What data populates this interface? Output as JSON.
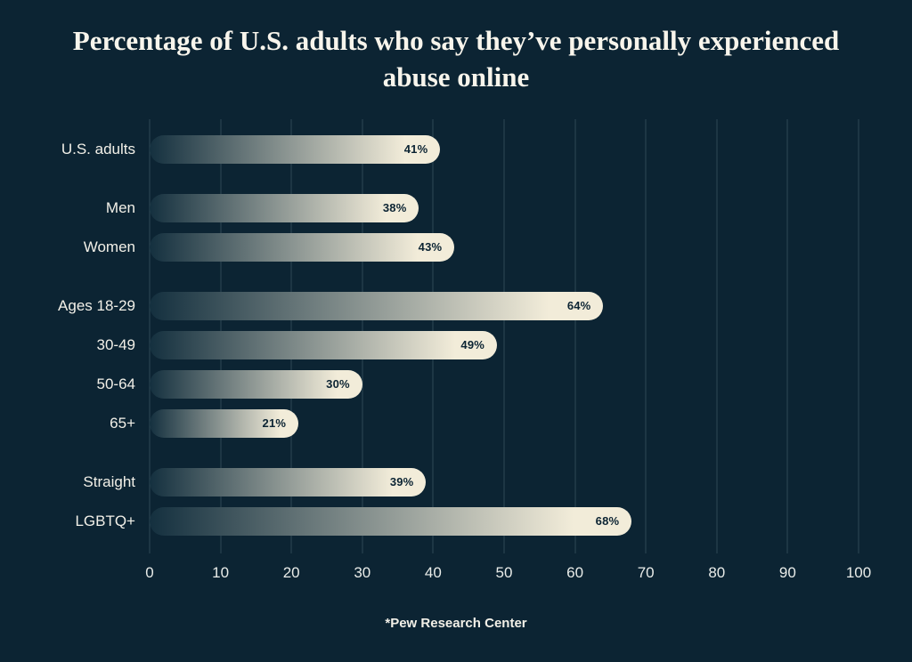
{
  "title": "Percentage of U.S. adults who say they’ve personally experienced abuse online",
  "source_note": "*Pew Research Center",
  "colors": {
    "background": "#0c2433",
    "bar_gradient_start": "#14303f",
    "bar_gradient_end": "#f2ecd9",
    "title_text": "#f8f5ec",
    "label_text": "#f2f0e8",
    "value_text": "#0c2433",
    "gridline": "rgba(170,195,205,0.22)",
    "tick_text": "#e9ece9"
  },
  "chart_data": {
    "type": "bar",
    "orientation": "horizontal",
    "title": "Percentage of U.S. adults who say they’ve personally experienced abuse online",
    "categories": [
      "U.S. adults",
      "Men",
      "Women",
      "Ages 18-29",
      "30-49",
      "50-64",
      "65+",
      "Straight",
      "LGBTQ+"
    ],
    "values": [
      41,
      38,
      43,
      64,
      49,
      30,
      21,
      39,
      68
    ],
    "value_labels": [
      "41%",
      "38%",
      "43%",
      "64%",
      "49%",
      "30%",
      "21%",
      "39%",
      "68%"
    ],
    "group_start_indices": [
      1,
      3,
      7
    ],
    "xlim": [
      0,
      100
    ],
    "xticks": [
      0,
      10,
      20,
      30,
      40,
      50,
      60,
      70,
      80,
      90,
      100
    ],
    "grid": true,
    "legend": false,
    "source": "*Pew Research Center"
  }
}
